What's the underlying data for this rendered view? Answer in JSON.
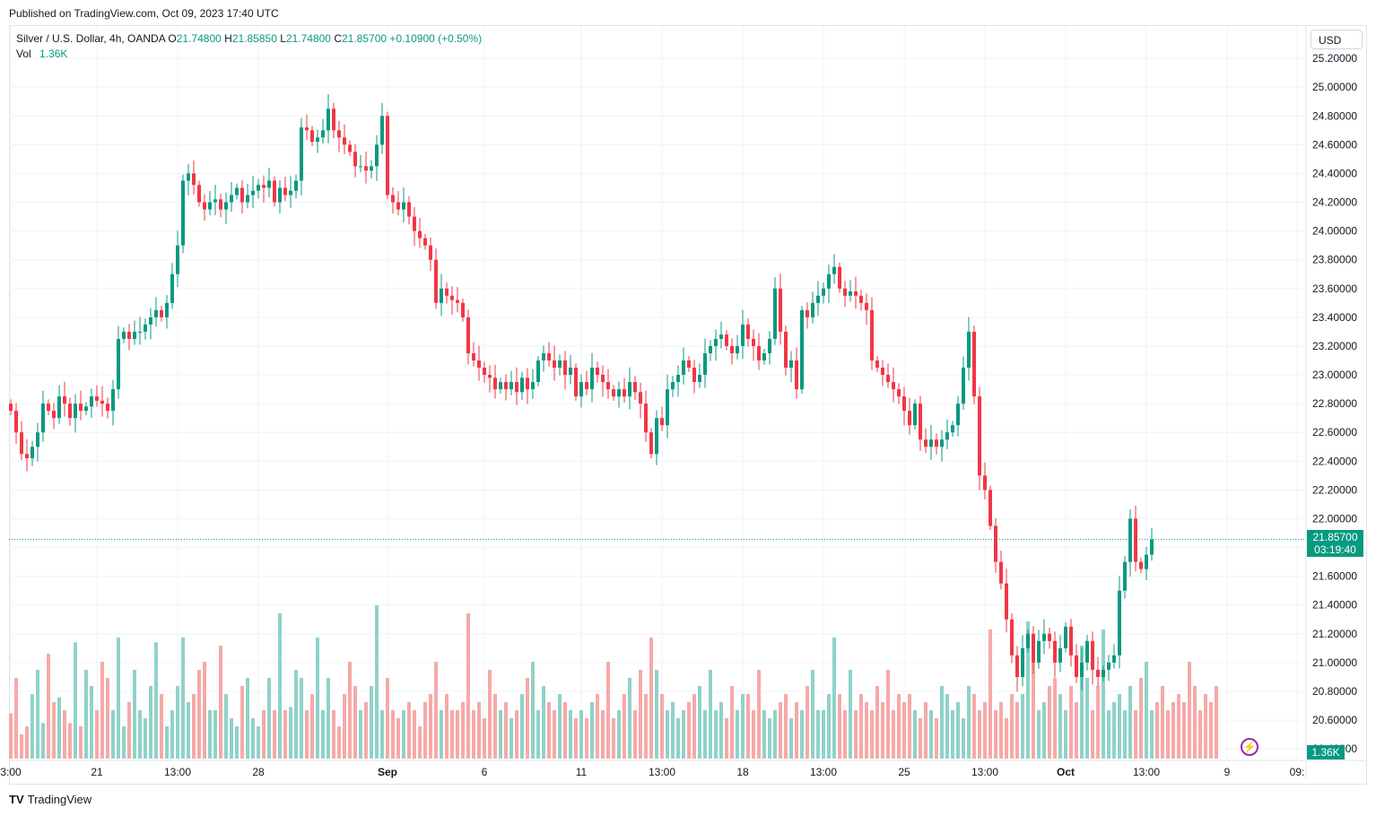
{
  "header": {
    "published": "Published on TradingView.com, Oct 09, 2023 17:40 UTC"
  },
  "legend": {
    "symbol": "Silver / U.S. Dollar, 4h, OANDA",
    "o_label": "O",
    "o": "21.74800",
    "h_label": "H",
    "h": "21.85850",
    "l_label": "L",
    "l": "21.74800",
    "c_label": "C",
    "c": "21.85700",
    "change": "+0.10900 (+0.50%)",
    "vol_label": "Vol",
    "vol": "1.36K"
  },
  "currency": "USD",
  "price_tag": {
    "price": "21.85700",
    "countdown": "03:19:40"
  },
  "vol_tag": "1.36K",
  "brand": {
    "logo": "TV",
    "name": "TradingView"
  },
  "colors": {
    "up": "#089981",
    "down": "#f23645",
    "vol_up": "#8fd2c8",
    "vol_down": "#f6a9a8",
    "grid": "#f0f3fa"
  },
  "chart_data": {
    "type": "candlestick",
    "title": "Silver / U.S. Dollar, 4h, OANDA",
    "ylim": [
      20.32,
      25.4
    ],
    "y_ticks": [
      "25.20000",
      "25.00000",
      "24.80000",
      "24.60000",
      "24.40000",
      "24.20000",
      "24.00000",
      "23.80000",
      "23.60000",
      "23.40000",
      "23.20000",
      "23.00000",
      "22.80000",
      "22.60000",
      "22.40000",
      "22.20000",
      "22.00000",
      "21.80000",
      "21.60000",
      "21.40000",
      "21.20000",
      "21.00000",
      "20.80000",
      "20.60000",
      "20.40000"
    ],
    "x_ticks": [
      {
        "label": "3:00",
        "i": 0
      },
      {
        "label": "21",
        "i": 16
      },
      {
        "label": "13:00",
        "i": 31
      },
      {
        "label": "28",
        "i": 46
      },
      {
        "label": "Sep",
        "i": 70
      },
      {
        "label": "6",
        "i": 88
      },
      {
        "label": "11",
        "i": 106
      },
      {
        "label": "13:00",
        "i": 121
      },
      {
        "label": "18",
        "i": 136
      },
      {
        "label": "13:00",
        "i": 151
      },
      {
        "label": "25",
        "i": 166
      },
      {
        "label": "13:00",
        "i": 181
      },
      {
        "label": "Oct",
        "i": 196
      },
      {
        "label": "13:00",
        "i": 211
      },
      {
        "label": "9",
        "i": 226
      },
      {
        "label": "09:",
        "i": 239
      }
    ],
    "last_price": 21.857,
    "closes": [
      22.75,
      22.6,
      22.45,
      22.42,
      22.5,
      22.6,
      22.8,
      22.75,
      22.7,
      22.85,
      22.8,
      22.7,
      22.8,
      22.75,
      22.78,
      22.85,
      22.82,
      22.8,
      22.75,
      22.9,
      23.25,
      23.3,
      23.25,
      23.3,
      23.3,
      23.35,
      23.4,
      23.45,
      23.4,
      23.5,
      23.7,
      23.9,
      24.35,
      24.4,
      24.32,
      24.2,
      24.15,
      24.2,
      24.22,
      24.15,
      24.2,
      24.25,
      24.3,
      24.2,
      24.25,
      24.28,
      24.32,
      24.3,
      24.35,
      24.2,
      24.3,
      24.25,
      24.28,
      24.35,
      24.72,
      24.7,
      24.62,
      24.65,
      24.7,
      24.85,
      24.7,
      24.65,
      24.6,
      24.55,
      24.45,
      24.45,
      24.42,
      24.45,
      24.6,
      24.8,
      24.25,
      24.2,
      24.15,
      24.2,
      24.1,
      24.0,
      23.95,
      23.9,
      23.8,
      23.5,
      23.6,
      23.55,
      23.52,
      23.5,
      23.4,
      23.15,
      23.1,
      23.05,
      23.0,
      22.98,
      22.9,
      22.95,
      22.9,
      22.95,
      22.88,
      22.98,
      22.9,
      22.95,
      23.1,
      23.15,
      23.1,
      23.05,
      23.1,
      23.0,
      23.05,
      22.85,
      22.95,
      22.9,
      23.05,
      23.0,
      22.95,
      22.9,
      22.85,
      22.9,
      22.85,
      22.95,
      22.88,
      22.8,
      22.6,
      22.45,
      22.7,
      22.65,
      22.9,
      22.95,
      23.0,
      23.1,
      23.05,
      22.95,
      23.0,
      23.15,
      23.2,
      23.25,
      23.28,
      23.2,
      23.15,
      23.2,
      23.35,
      23.25,
      23.2,
      23.1,
      23.15,
      23.25,
      23.6,
      23.3,
      23.05,
      23.1,
      22.9,
      23.45,
      23.4,
      23.5,
      23.55,
      23.6,
      23.7,
      23.75,
      23.6,
      23.55,
      23.58,
      23.55,
      23.5,
      23.45,
      23.1,
      23.05,
      23.0,
      22.95,
      22.9,
      22.85,
      22.75,
      22.65,
      22.8,
      22.55,
      22.5,
      22.55,
      22.5,
      22.55,
      22.6,
      22.65,
      22.8,
      23.05,
      23.3,
      22.85,
      22.3,
      22.2,
      21.95,
      21.7,
      21.55,
      21.3,
      21.05,
      20.9,
      21.1,
      21.2,
      21.0,
      21.15,
      21.2,
      21.15,
      21.0,
      21.1,
      21.25,
      21.05,
      20.9,
      21.0,
      21.15,
      20.95,
      20.9,
      20.95,
      21.0,
      21.05,
      21.5,
      21.7,
      22.0,
      21.7,
      21.65,
      21.75,
      21.857
    ],
    "volumes": [
      0.28,
      0.5,
      0.15,
      0.2,
      0.4,
      0.55,
      0.22,
      0.65,
      0.35,
      0.38,
      0.3,
      0.22,
      0.72,
      0.2,
      0.55,
      0.45,
      0.3,
      0.6,
      0.5,
      0.3,
      0.75,
      0.2,
      0.35,
      0.55,
      0.3,
      0.25,
      0.45,
      0.72,
      0.4,
      0.2,
      0.3,
      0.45,
      0.75,
      0.35,
      0.4,
      0.55,
      0.6,
      0.3,
      0.3,
      0.7,
      0.4,
      0.25,
      0.2,
      0.45,
      0.5,
      0.25,
      0.2,
      0.3,
      0.5,
      0.3,
      0.9,
      0.3,
      0.32,
      0.55,
      0.5,
      0.3,
      0.4,
      0.75,
      0.3,
      0.5,
      0.3,
      0.2,
      0.4,
      0.6,
      0.45,
      0.3,
      0.35,
      0.45,
      0.95,
      0.3,
      0.5,
      0.3,
      0.25,
      0.3,
      0.35,
      0.3,
      0.2,
      0.35,
      0.4,
      0.6,
      0.3,
      0.4,
      0.3,
      0.3,
      0.35,
      0.9,
      0.3,
      0.35,
      0.25,
      0.55,
      0.4,
      0.3,
      0.35,
      0.25,
      0.3,
      0.4,
      0.5,
      0.6,
      0.3,
      0.45,
      0.35,
      0.3,
      0.4,
      0.35,
      0.3,
      0.25,
      0.3,
      0.25,
      0.35,
      0.4,
      0.3,
      0.6,
      0.25,
      0.3,
      0.4,
      0.5,
      0.3,
      0.55,
      0.4,
      0.75,
      0.55,
      0.4,
      0.3,
      0.35,
      0.25,
      0.3,
      0.35,
      0.4,
      0.45,
      0.3,
      0.55,
      0.3,
      0.35,
      0.25,
      0.45,
      0.3,
      0.4,
      0.4,
      0.3,
      0.55,
      0.3,
      0.25,
      0.3,
      0.35,
      0.4,
      0.25,
      0.35,
      0.3,
      0.45,
      0.55,
      0.3,
      0.3,
      0.4,
      0.75,
      0.4,
      0.3,
      0.55,
      0.3,
      0.4,
      0.35,
      0.3,
      0.45,
      0.35,
      0.55,
      0.3,
      0.4,
      0.35,
      0.4,
      0.3,
      0.25,
      0.35,
      0.3,
      0.25,
      0.45,
      0.4,
      0.3,
      0.35,
      0.25,
      0.45,
      0.4,
      0.3,
      0.35,
      0.8,
      0.3,
      0.35,
      0.25,
      0.4,
      0.35,
      0.4,
      0.85,
      0.6,
      0.3,
      0.35,
      0.45,
      0.5,
      0.4,
      0.3,
      0.45,
      0.35,
      0.7,
      0.5,
      0.3,
      0.45,
      0.8,
      0.3,
      0.35,
      0.4,
      0.3,
      0.45,
      0.3,
      0.5,
      0.6,
      0.3,
      0.35,
      0.45,
      0.3,
      0.35,
      0.4,
      0.35,
      0.6,
      0.45,
      0.3,
      0.4,
      0.35,
      0.45
    ]
  }
}
